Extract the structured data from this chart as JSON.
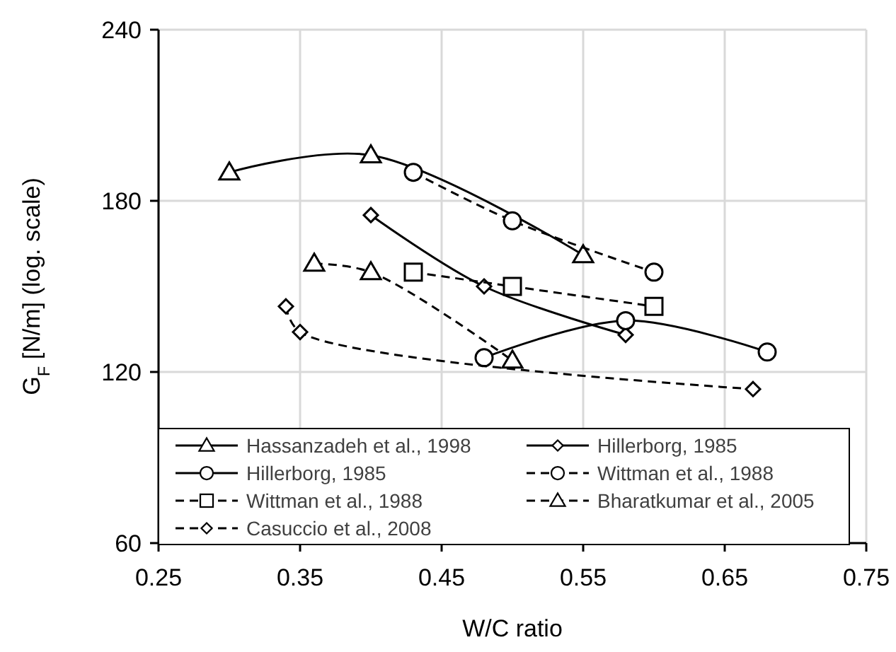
{
  "chart_data": {
    "type": "line",
    "xlabel": "W/C ratio",
    "ylabel": "G$_{F}$ [N/m] (log. scale)",
    "xlim": [
      0.25,
      0.75
    ],
    "xticks": [
      {
        "value": 0.25,
        "label": "0.25"
      },
      {
        "value": 0.35,
        "label": "0.35"
      },
      {
        "value": 0.45,
        "label": "0.45"
      },
      {
        "value": 0.55,
        "label": "0.55"
      },
      {
        "value": 0.65,
        "label": "0.65"
      },
      {
        "value": 0.75,
        "label": "0.75"
      }
    ],
    "ylim": [
      60,
      240
    ],
    "yticks": [
      60,
      120,
      180,
      240
    ],
    "grid": true,
    "legend": "bottom",
    "series": [
      {
        "name": "Hassanzadeh et al., 1998",
        "color": "#000000",
        "marker": "triangle",
        "line_style": "solid",
        "x": [
          0.3,
          0.4,
          0.55
        ],
        "values": [
          190,
          196,
          161
        ]
      },
      {
        "name": "Hillerborg, 1985",
        "color": "#000000",
        "marker": "diamond",
        "line_style": "solid",
        "x": [
          0.4,
          0.48,
          0.58
        ],
        "values": [
          175,
          150,
          133
        ]
      },
      {
        "name": "Hillerborg, 1985",
        "color": "#000000",
        "marker": "circle",
        "line_style": "solid",
        "x": [
          0.48,
          0.58,
          0.68
        ],
        "values": [
          125,
          138,
          127
        ]
      },
      {
        "name": "Wittman et al., 1988",
        "color": "#000000",
        "marker": "circle",
        "line_style": "dashed",
        "x": [
          0.43,
          0.5,
          0.6
        ],
        "values": [
          190,
          173,
          155
        ]
      },
      {
        "name": "Wittman et al., 1988",
        "color": "#000000",
        "marker": "square",
        "line_style": "dashed",
        "x": [
          0.43,
          0.5,
          0.6
        ],
        "values": [
          155,
          150,
          143
        ]
      },
      {
        "name": "Bharatkumar et al., 2005",
        "color": "#000000",
        "marker": "triangle",
        "line_style": "dashed",
        "x": [
          0.36,
          0.4,
          0.5
        ],
        "values": [
          158,
          155,
          124
        ]
      },
      {
        "name": "Casuccio et al., 2008",
        "color": "#000000",
        "marker": "diamond",
        "line_style": "dashed",
        "x": [
          0.34,
          0.35,
          0.67
        ],
        "values": [
          143,
          134,
          114
        ]
      }
    ]
  }
}
